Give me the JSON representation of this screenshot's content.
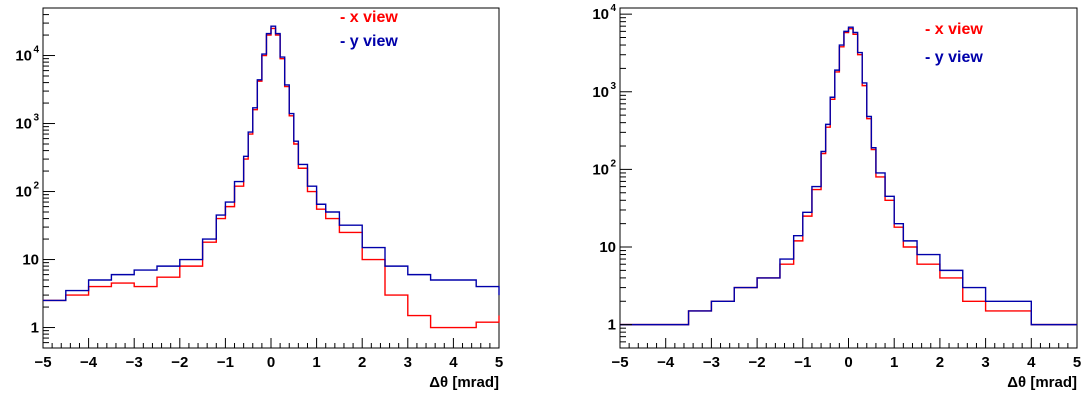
{
  "colors": {
    "x_view": "#ff0000",
    "y_view": "#0000aa",
    "axis": "#000000"
  },
  "chart_data": [
    {
      "type": "line",
      "step": true,
      "log_y": true,
      "xlim": [
        -5,
        5
      ],
      "ylim": [
        0.5,
        50000
      ],
      "xlabel": "Δθ [mrad]",
      "x_ticks": [
        "−5",
        "−4",
        "−3",
        "−2",
        "−1",
        "0",
        "1",
        "2",
        "3",
        "4",
        "5"
      ],
      "y_ticks": [
        {
          "base": "1",
          "exp": ""
        },
        {
          "base": "10",
          "exp": ""
        },
        {
          "base": "10",
          "exp": "2"
        },
        {
          "base": "10",
          "exp": "3"
        },
        {
          "base": "10",
          "exp": "4"
        }
      ],
      "grid": false,
      "legend_position": "top-right",
      "legend": [
        "- x view",
        "- y view"
      ],
      "series": [
        {
          "name": "- x view",
          "x": [
            -5,
            -4.5,
            -4,
            -3.5,
            -3,
            -2.5,
            -2,
            -1.5,
            -1.2,
            -1,
            -0.8,
            -0.6,
            -0.5,
            -0.4,
            -0.3,
            -0.2,
            -0.1,
            0,
            0.1,
            0.2,
            0.3,
            0.4,
            0.5,
            0.6,
            0.8,
            1,
            1.2,
            1.5,
            2,
            2.5,
            3,
            3.5,
            4,
            4.5,
            5
          ],
          "y": [
            2.5,
            3,
            4,
            4.5,
            4,
            5.5,
            8,
            18,
            40,
            60,
            120,
            300,
            700,
            1600,
            4200,
            10000,
            20000,
            25000,
            20000,
            9000,
            3500,
            1300,
            500,
            220,
            100,
            55,
            40,
            25,
            10,
            3,
            1.5,
            1,
            1,
            1.2,
            1.5
          ]
        },
        {
          "name": "- y view",
          "x": [
            -5,
            -4.5,
            -4,
            -3.5,
            -3,
            -2.5,
            -2,
            -1.5,
            -1.2,
            -1,
            -0.8,
            -0.6,
            -0.5,
            -0.4,
            -0.3,
            -0.2,
            -0.1,
            0,
            0.1,
            0.2,
            0.3,
            0.4,
            0.5,
            0.6,
            0.8,
            1,
            1.2,
            1.5,
            2,
            2.5,
            3,
            3.5,
            4,
            4.5,
            5
          ],
          "y": [
            2.5,
            3.5,
            5,
            6,
            7,
            8,
            10,
            20,
            45,
            70,
            140,
            330,
            750,
            1700,
            4400,
            10500,
            21000,
            27000,
            21000,
            9500,
            3700,
            1400,
            550,
            250,
            120,
            65,
            50,
            32,
            15,
            8,
            6,
            5,
            5,
            4,
            3
          ]
        }
      ]
    },
    {
      "type": "line",
      "step": true,
      "log_y": true,
      "xlim": [
        -5,
        5
      ],
      "ylim": [
        0.5,
        12000
      ],
      "xlabel": "Δθ [mrad]",
      "x_ticks": [
        "−5",
        "−4",
        "−3",
        "−2",
        "−1",
        "0",
        "1",
        "2",
        "3",
        "4",
        "5"
      ],
      "y_ticks": [
        {
          "base": "1",
          "exp": ""
        },
        {
          "base": "10",
          "exp": ""
        },
        {
          "base": "10",
          "exp": "2"
        },
        {
          "base": "10",
          "exp": "3"
        },
        {
          "base": "10",
          "exp": "4"
        }
      ],
      "grid": false,
      "legend_position": "top-right",
      "legend": [
        "- x view",
        "- y view"
      ],
      "series": [
        {
          "name": "- x view",
          "x": [
            -5,
            -4.5,
            -4,
            -3.5,
            -3,
            -2.5,
            -2,
            -1.5,
            -1.2,
            -1,
            -0.8,
            -0.6,
            -0.5,
            -0.4,
            -0.3,
            -0.2,
            -0.1,
            0,
            0.1,
            0.2,
            0.3,
            0.4,
            0.5,
            0.6,
            0.8,
            1,
            1.2,
            1.5,
            2,
            2.5,
            3,
            3.5,
            4,
            4.5,
            5
          ],
          "y": [
            1,
            1,
            1,
            1.5,
            2,
            3,
            4,
            6,
            12,
            25,
            55,
            160,
            350,
            800,
            1800,
            3800,
            5800,
            6500,
            5500,
            3000,
            1200,
            450,
            180,
            80,
            40,
            18,
            10,
            6,
            4,
            2,
            1.5,
            1.5,
            1,
            1,
            1
          ]
        },
        {
          "name": "- y view",
          "x": [
            -5,
            -4.5,
            -4,
            -3.5,
            -3,
            -2.5,
            -2,
            -1.5,
            -1.2,
            -1,
            -0.8,
            -0.6,
            -0.5,
            -0.4,
            -0.3,
            -0.2,
            -0.1,
            0,
            0.1,
            0.2,
            0.3,
            0.4,
            0.5,
            0.6,
            0.8,
            1,
            1.2,
            1.5,
            2,
            2.5,
            3,
            3.5,
            4,
            4.5,
            5
          ],
          "y": [
            1,
            1,
            1,
            1.5,
            2,
            3,
            4,
            7,
            14,
            28,
            60,
            170,
            380,
            850,
            1900,
            4000,
            6000,
            6800,
            5800,
            3200,
            1300,
            480,
            190,
            90,
            45,
            20,
            12,
            8,
            5,
            3,
            2,
            2,
            1,
            1,
            1
          ]
        }
      ]
    }
  ]
}
